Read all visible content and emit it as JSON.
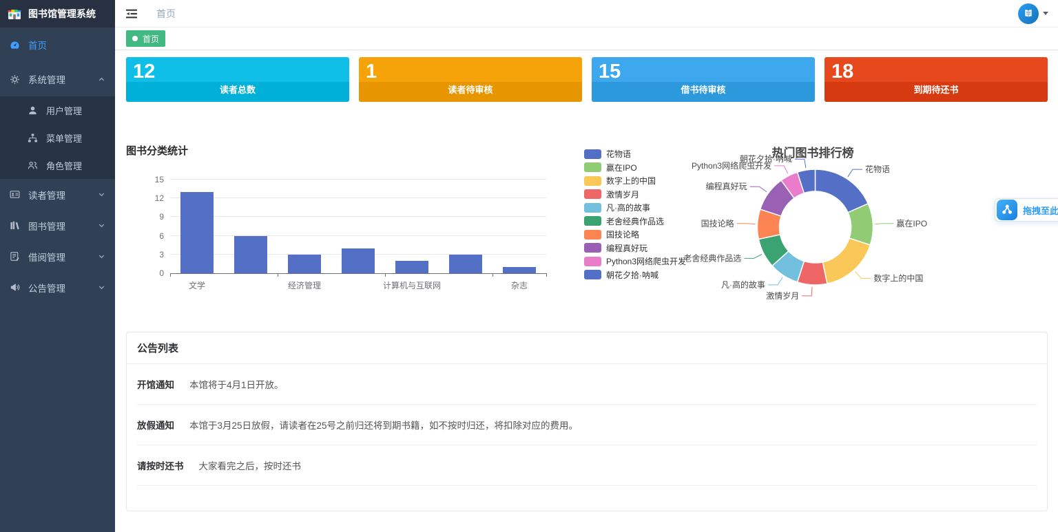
{
  "app": {
    "name": "图书馆管理系统"
  },
  "sidebar": {
    "items": [
      {
        "label": "首页",
        "active": true
      },
      {
        "label": "系统管理",
        "expanded": true,
        "children": [
          {
            "label": "用户管理"
          },
          {
            "label": "菜单管理"
          },
          {
            "label": "角色管理"
          }
        ]
      },
      {
        "label": "读者管理"
      },
      {
        "label": "图书管理"
      },
      {
        "label": "借阅管理"
      },
      {
        "label": "公告管理"
      }
    ]
  },
  "navbar": {
    "breadcrumb": "首页"
  },
  "tabbar": {
    "tabs": [
      {
        "label": "首页",
        "active": true,
        "color": "#42b983"
      }
    ]
  },
  "stat_cards": [
    {
      "value": "12",
      "label": "读者总数",
      "color": "#0fbfe8",
      "band_color": "#00b0d8"
    },
    {
      "value": "1",
      "label": "读者待审核",
      "color": "#f6a209",
      "band_color": "#e79500"
    },
    {
      "value": "15",
      "label": "借书待审核",
      "color": "#3ea8ee",
      "band_color": "#2c99dd"
    },
    {
      "value": "18",
      "label": "到期待还书",
      "color": "#e7491f",
      "band_color": "#d63a10"
    }
  ],
  "chart_data": [
    {
      "type": "bar",
      "title": "图书分类统计",
      "categories": [
        "文学",
        "",
        "经济管理",
        "",
        "计算机与互联网",
        "",
        "杂志"
      ],
      "values": [
        13,
        6,
        3,
        4,
        2,
        3,
        1
      ],
      "xlabel": "",
      "ylabel": "",
      "ylim": [
        0,
        15
      ],
      "yticks": [
        0,
        3,
        6,
        9,
        12,
        15
      ],
      "bar_color": "#5470c6",
      "grid": true,
      "legend_position": "none"
    },
    {
      "type": "pie",
      "style": "donut",
      "title": "热门图书排行榜",
      "legend_position": "left",
      "series": [
        {
          "name": "花物语",
          "value": 11,
          "color": "#5470c6"
        },
        {
          "name": "赢在IPO",
          "value": 7,
          "color": "#91cc75"
        },
        {
          "name": "数字上的中国",
          "value": 10,
          "color": "#fac858"
        },
        {
          "name": "激情岁月",
          "value": 5,
          "color": "#ee6666"
        },
        {
          "name": "凡·高的故事",
          "value": 5,
          "color": "#73c0de"
        },
        {
          "name": "老舍经典作品选",
          "value": 5,
          "color": "#3ba272"
        },
        {
          "name": "国技论略",
          "value": 5,
          "color": "#fc8452"
        },
        {
          "name": "编程真好玩",
          "value": 6,
          "color": "#9a60b4"
        },
        {
          "name": "Python3网络爬虫开发",
          "value": 3,
          "color": "#ea7ccc"
        },
        {
          "name": "朝花夕拾·呐喊",
          "value": 3,
          "color": "#5470c6"
        }
      ]
    }
  ],
  "announcements": {
    "title": "公告列表",
    "items": [
      {
        "title": "开馆通知",
        "content": "本馆将于4月1日开放。"
      },
      {
        "title": "放假通知",
        "content": "本馆于3月25日放假，请读者在25号之前归还将到期书籍，如不按时归还，将扣除对应的费用。"
      },
      {
        "title": "请按时还书",
        "content": "大家看完之后，按时还书"
      }
    ]
  },
  "upload_widget": {
    "label": "拖拽至此上传"
  }
}
